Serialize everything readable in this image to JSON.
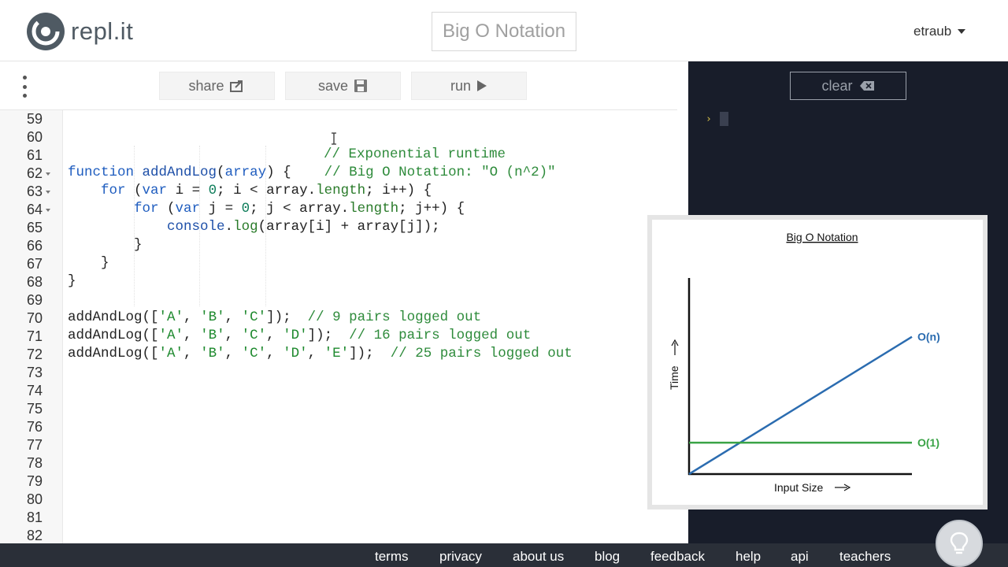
{
  "header": {
    "logo_text": "repl.it",
    "project_title": "Big O Notation",
    "username": "etraub"
  },
  "toolbar": {
    "share_label": "share",
    "save_label": "save",
    "run_label": "run"
  },
  "console": {
    "clear_label": "clear",
    "prompt_symbol": "›"
  },
  "editor": {
    "line_numbers": [
      "59",
      "60",
      "61",
      "62",
      "63",
      "64",
      "65",
      "66",
      "67",
      "68",
      "69",
      "70",
      "71",
      "72",
      "73",
      "74",
      "75",
      "76",
      "77",
      "78",
      "79",
      "80",
      "81",
      "82"
    ],
    "folded_lines": [
      "62",
      "63",
      "64"
    ]
  },
  "chart_data": {
    "type": "line",
    "title": "Big O Notation",
    "xlabel": "Input Size",
    "ylabel": "Time",
    "x": [
      0,
      1
    ],
    "series": [
      {
        "name": "O(n)",
        "values": [
          0,
          0.7
        ],
        "color": "#2b6cb0"
      },
      {
        "name": "O(1)",
        "values": [
          0.16,
          0.16
        ],
        "color": "#3aa346"
      }
    ],
    "xlim": [
      0,
      1
    ],
    "ylim": [
      0,
      1
    ],
    "grid": false,
    "legend": "inline-right"
  },
  "footer": {
    "links": [
      "terms",
      "privacy",
      "about us",
      "blog",
      "feedback",
      "help",
      "api",
      "teachers"
    ]
  },
  "colors": {
    "console_bg": "#181d2a",
    "footer_bg": "#2a2f38",
    "keyword": "#1f5dbf",
    "comment": "#2e8b3b"
  }
}
